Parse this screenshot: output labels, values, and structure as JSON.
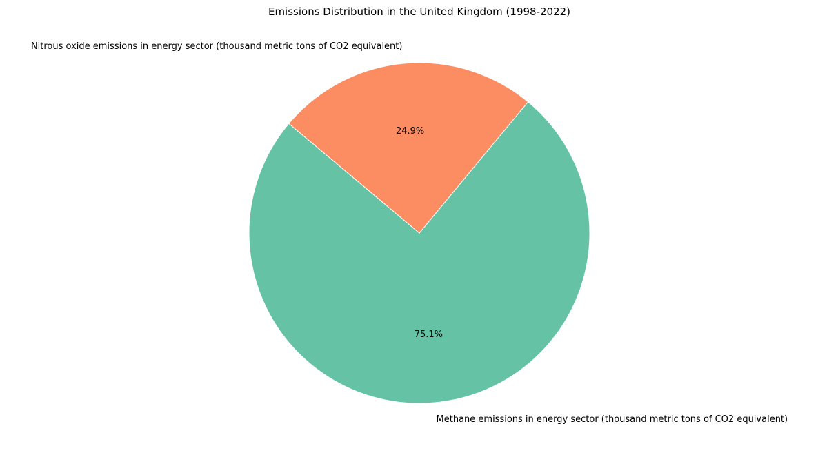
{
  "chart_data": {
    "type": "pie",
    "title": "Emissions Distribution in the United Kingdom (1998-2022)",
    "slices": [
      {
        "label": "Methane emissions in energy sector (thousand metric tons of CO2 equivalent)",
        "value": 75.1,
        "pct_label": "75.1%",
        "color": "#66c2a5"
      },
      {
        "label": "Nitrous oxide emissions in energy sector (thousand metric tons of CO2 equivalent)",
        "value": 24.9,
        "pct_label": "24.9%",
        "color": "#fc8d62"
      }
    ],
    "start_angle_deg": 140,
    "counterclock": true,
    "legend": "none"
  }
}
